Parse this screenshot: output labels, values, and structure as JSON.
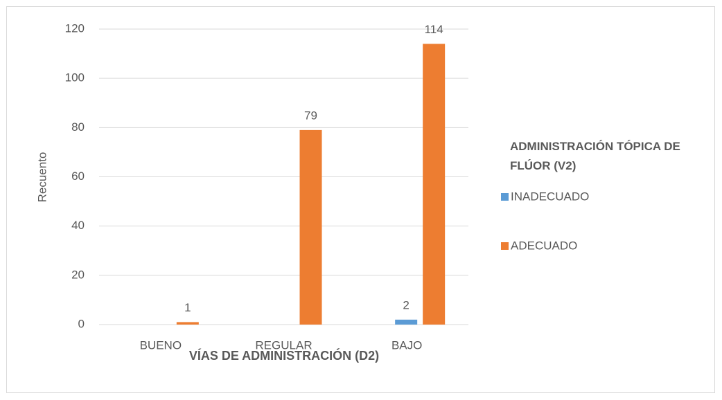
{
  "chart_data": {
    "type": "bar",
    "x_label": "VÍAS DE ADMINISTRACIÓN (D2)",
    "y_label": "Recuento",
    "legend_title": "ADMINISTRACIÓN TÓPICA DE FLÚOR (V2)",
    "categories": [
      "BUENO",
      "REGULAR",
      "BAJO"
    ],
    "series": [
      {
        "name": "INADECUADO",
        "color": "#5b9bd5",
        "values": [
          null,
          null,
          2
        ]
      },
      {
        "name": "ADECUADO",
        "color": "#ed7d31",
        "values": [
          1,
          79,
          114
        ]
      }
    ],
    "ylim": [
      0,
      120
    ],
    "yticks": [
      0,
      20,
      40,
      60,
      80,
      100,
      120
    ],
    "grid": true,
    "legend": "right"
  }
}
